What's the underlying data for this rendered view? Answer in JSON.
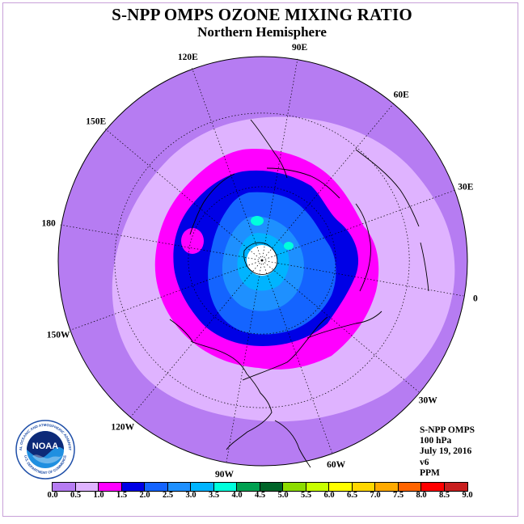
{
  "title": "S-NPP OMPS OZONE MIXING RATIO",
  "subtitle": "Northern Hemisphere",
  "longitude_labels": [
    "90E",
    "60E",
    "30E",
    "0",
    "30W",
    "60W",
    "90W",
    "120W",
    "150W",
    "180",
    "150E",
    "120E"
  ],
  "info": {
    "instrument": "S-NPP OMPS",
    "level": "100 hPa",
    "date": "July 19, 2016",
    "version": "v6",
    "units": "PPM"
  },
  "colorbar": {
    "ticks": [
      "0.0",
      "0.5",
      "1.0",
      "1.5",
      "2.0",
      "2.5",
      "3.0",
      "3.5",
      "4.0",
      "4.5",
      "5.0",
      "5.5",
      "6.0",
      "6.5",
      "7.0",
      "7.5",
      "8.0",
      "8.5",
      "9.0"
    ],
    "colors": [
      "#b67cf2",
      "#dfb3ff",
      "#ff00ff",
      "#0000e6",
      "#1464ff",
      "#1e90ff",
      "#00b4ff",
      "#00ffdc",
      "#00a050",
      "#006428",
      "#8cdc00",
      "#c8ff00",
      "#ffff00",
      "#ffd700",
      "#ffaa00",
      "#ff6400",
      "#ff0000",
      "#c81e1e",
      "#8b5a3c"
    ]
  },
  "logo": {
    "text": "NOAA",
    "ring_top": "NATIONAL OCEANIC AND ATMOSPHERIC ADMINISTRATION",
    "ring_bottom": "U.S. DEPARTMENT OF COMMERCE"
  }
}
